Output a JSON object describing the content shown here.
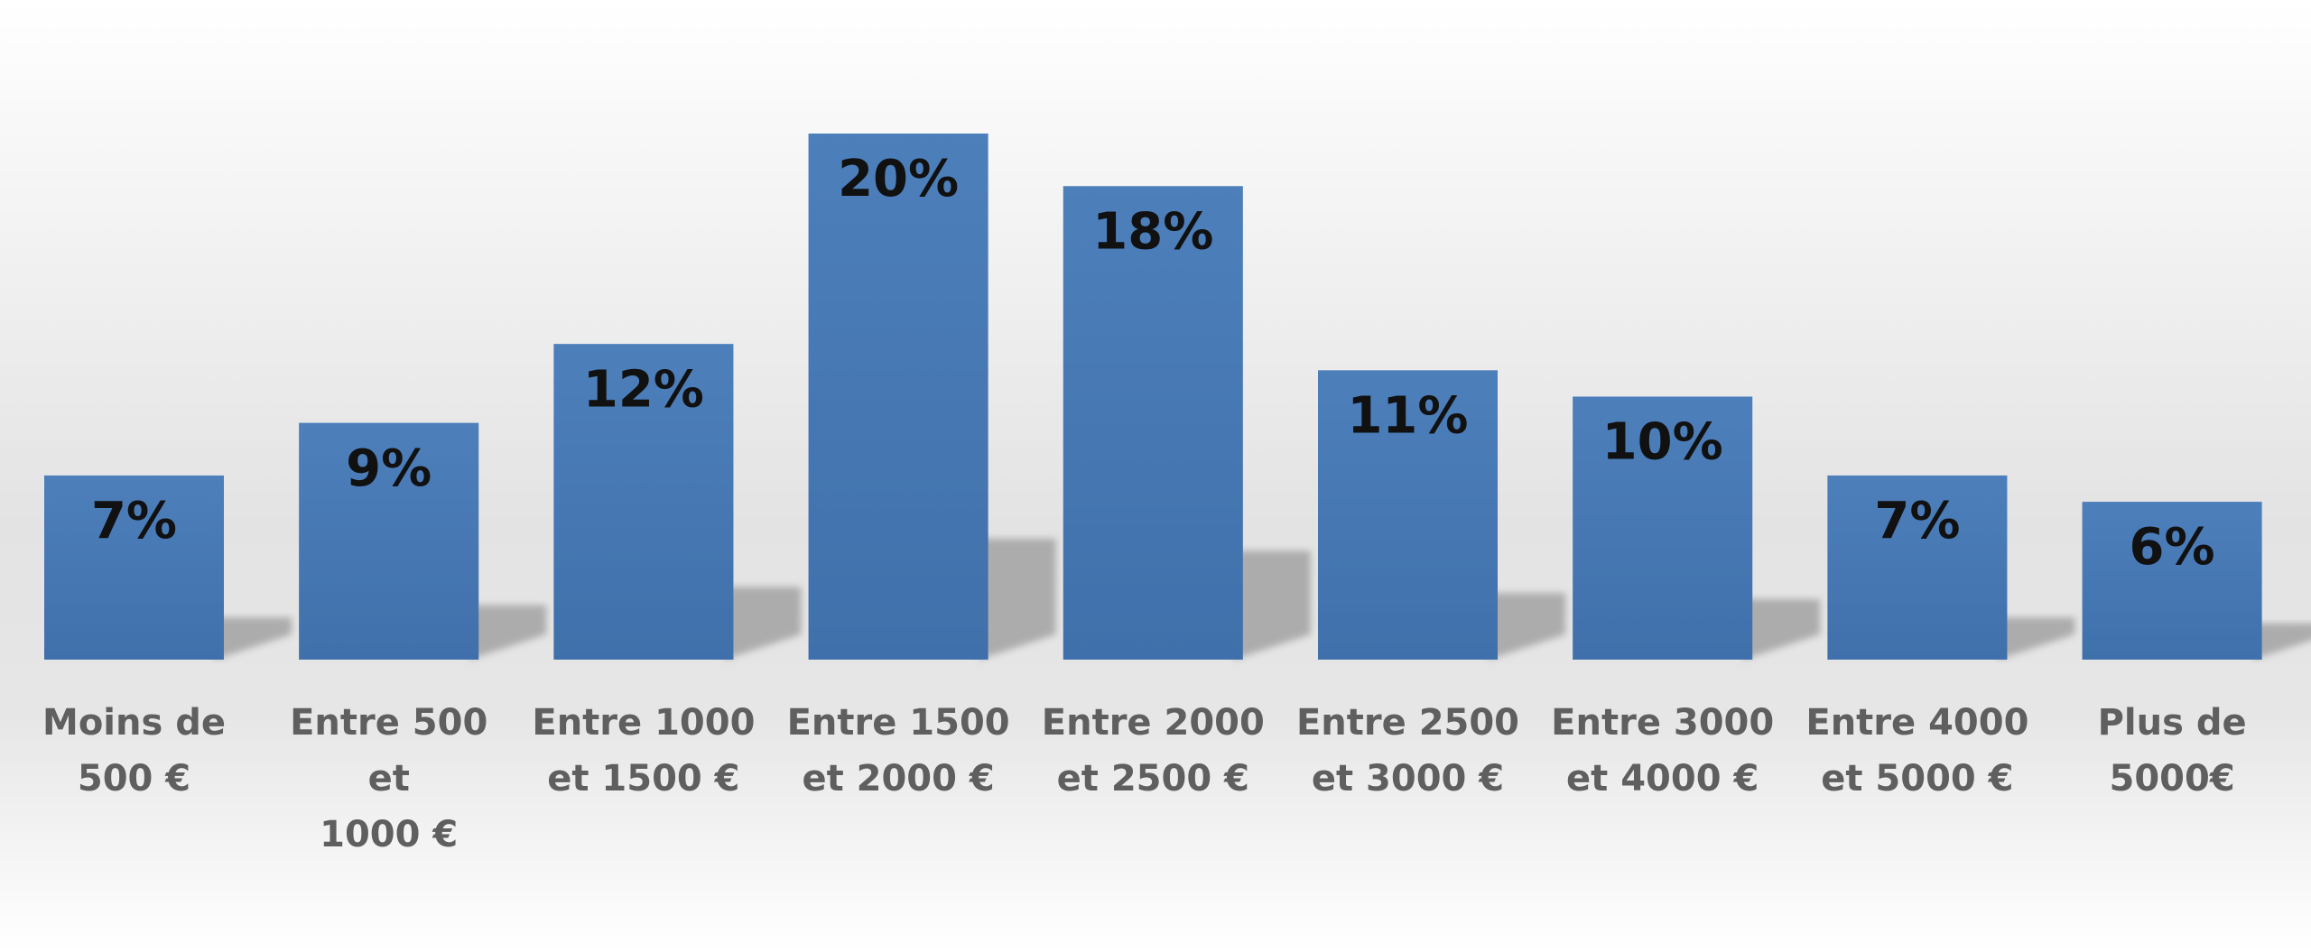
{
  "chart_data": {
    "type": "bar",
    "categories": [
      "Moins de\n500 €",
      "Entre 500 et\n1000 €",
      "Entre 1000\net 1500 €",
      "Entre 1500\net 2000 €",
      "Entre 2000\net 2500 €",
      "Entre 2500\net 3000 €",
      "Entre 3000\net 4000 €",
      "Entre 4000\net 5000 €",
      "Plus de\n5000€"
    ],
    "values": [
      7,
      9,
      12,
      20,
      18,
      11,
      10,
      7,
      6
    ],
    "value_labels": [
      "7%",
      "9%",
      "12%",
      "20%",
      "18%",
      "11%",
      "10%",
      "7%",
      "6%"
    ],
    "color": "#4a7ab5"
  }
}
